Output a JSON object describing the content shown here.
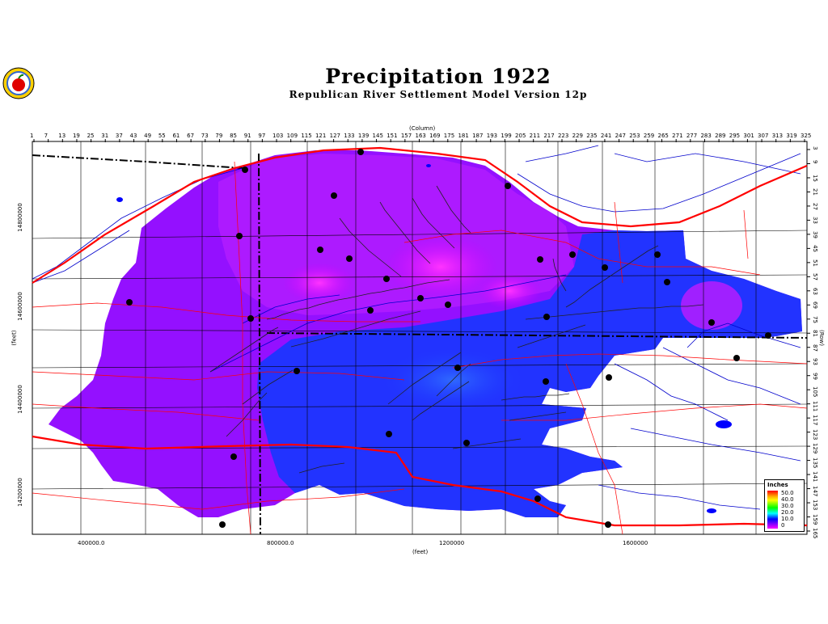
{
  "header": {
    "title": "Precipitation 1922",
    "subtitle": "Republican River Settlement Model Version 12p"
  },
  "logo": {
    "icon": "apple-logo-icon"
  },
  "axes": {
    "top_title": "(Column)",
    "bottom_title": "(feet)",
    "left_title": "(feet)",
    "right_title": "(Row)",
    "top_ticks": [
      "1",
      "7",
      "13",
      "19",
      "25",
      "31",
      "37",
      "43",
      "49",
      "55",
      "61",
      "67",
      "73",
      "79",
      "85",
      "91",
      "97",
      "103",
      "109",
      "115",
      "121",
      "127",
      "133",
      "139",
      "145",
      "151",
      "157",
      "163",
      "169",
      "175",
      "181",
      "187",
      "193",
      "199",
      "205",
      "211",
      "217",
      "223",
      "229",
      "235",
      "241",
      "247",
      "253",
      "259",
      "265",
      "271",
      "277",
      "283",
      "289",
      "295",
      "301",
      "307",
      "313",
      "319",
      "325"
    ],
    "right_ticks": [
      "3",
      "9",
      "15",
      "21",
      "27",
      "33",
      "39",
      "45",
      "51",
      "57",
      "63",
      "69",
      "75",
      "81",
      "87",
      "93",
      "99",
      "105",
      "111",
      "117",
      "123",
      "129",
      "135",
      "141",
      "147",
      "153",
      "159",
      "165"
    ],
    "bottom_ticks": [
      "400000.0",
      "800000.0",
      "1200000",
      "1600000"
    ],
    "left_ticks": [
      "14800000",
      "14600000",
      "14400000",
      "14200000"
    ]
  },
  "legend": {
    "title": "Inches",
    "labels": [
      "50.0",
      "40.0",
      "30.0",
      "20.0",
      "10.0",
      "0"
    ],
    "colors": [
      "#ff0000",
      "#ffff00",
      "#00ff00",
      "#00ffff",
      "#0000ff",
      "#ff00ff"
    ]
  },
  "colors": {
    "low_precip": "#8c1aff",
    "mid_precip": "#b300ff",
    "high_precip": "#1a33ff",
    "river": "#0000cc",
    "road": "#ff0000",
    "county_line": "#000000"
  }
}
